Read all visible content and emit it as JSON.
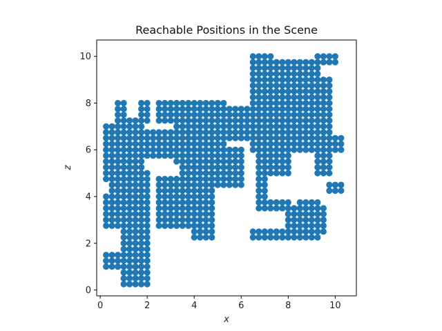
{
  "chart_data": {
    "type": "scatter",
    "title": "Reachable Positions in the Scene",
    "xlabel": "x",
    "ylabel": "z",
    "xlim": [
      -0.15,
      10.9
    ],
    "ylim": [
      -0.25,
      10.7
    ],
    "xticks": [
      "0",
      "2",
      "4",
      "6",
      "8",
      "10"
    ],
    "yticks": [
      "0",
      "2",
      "4",
      "6",
      "8",
      "10"
    ],
    "grid": false,
    "legend": "none",
    "point_color": "#1f77b4",
    "grid_step": 0.25,
    "point_count": 1059,
    "series": [
      {
        "regions": [
          {
            "x": [
              0.25,
              1.75
            ],
            "z": [
              4.75,
              7.0
            ]
          },
          {
            "x": [
              0.25,
              0.75
            ],
            "z": [
              2.75,
              4.0
            ]
          },
          {
            "x": [
              0.25,
              1.75
            ],
            "z": [
              1.0,
              1.5
            ]
          },
          {
            "x": [
              0.5,
              1.75
            ],
            "z": [
              3.0,
              6.0
            ]
          },
          {
            "x": [
              0.75,
              1.75
            ],
            "z": [
              5.5,
              7.25
            ]
          },
          {
            "x": [
              0.75,
              1.0
            ],
            "z": [
              7.25,
              8.0
            ]
          },
          {
            "x": [
              1.0,
              2.0
            ],
            "z": [
              0.25,
              5.0
            ]
          },
          {
            "x": [
              1.75,
              2.0
            ],
            "z": [
              7.25,
              8.0
            ]
          },
          {
            "x": [
              1.75,
              2.25
            ],
            "z": [
              5.75,
              6.75
            ]
          },
          {
            "x": [
              2.25,
              3.25
            ],
            "z": [
              6.25,
              6.75
            ]
          },
          {
            "x": [
              2.25,
              4.5
            ],
            "z": [
              5.75,
              6.25
            ]
          },
          {
            "x": [
              2.5,
              4.75
            ],
            "z": [
              2.75,
              4.75
            ]
          },
          {
            "x": [
              2.5,
              3.25
            ],
            "z": [
              7.25,
              8.0
            ]
          },
          {
            "x": [
              3.25,
              4.0
            ],
            "z": [
              7.5,
              8.0
            ]
          },
          {
            "x": [
              3.25,
              5.25
            ],
            "z": [
              5.5,
              7.5
            ]
          },
          {
            "x": [
              3.5,
              5.25
            ],
            "z": [
              4.75,
              6.0
            ]
          },
          {
            "x": [
              4.0,
              4.75
            ],
            "z": [
              2.25,
              3.25
            ]
          },
          {
            "x": [
              4.0,
              5.25
            ],
            "z": [
              7.5,
              8.0
            ]
          },
          {
            "x": [
              4.5,
              6.0
            ],
            "z": [
              4.5,
              6.0
            ]
          },
          {
            "x": [
              5.25,
              6.5
            ],
            "z": [
              6.5,
              7.75
            ]
          },
          {
            "x": [
              6.5,
              7.25
            ],
            "z": [
              8.0,
              10.0
            ]
          },
          {
            "x": [
              6.5,
              9.5
            ],
            "z": [
              6.0,
              9.0
            ]
          },
          {
            "x": [
              6.75,
              7.0
            ],
            "z": [
              3.5,
              6.0
            ]
          },
          {
            "x": [
              7.0,
              9.25
            ],
            "z": [
              9.0,
              9.75
            ]
          },
          {
            "x": [
              7.0,
              8.0
            ],
            "z": [
              5.0,
              6.0
            ]
          },
          {
            "x": [
              6.5,
              9.25
            ],
            "z": [
              2.25,
              2.5
            ]
          },
          {
            "x": [
              7.0,
              8.0
            ],
            "z": [
              3.5,
              3.75
            ]
          },
          {
            "x": [
              8.0,
              9.5
            ],
            "z": [
              2.5,
              3.5
            ]
          },
          {
            "x": [
              8.5,
              9.25
            ],
            "z": [
              3.5,
              3.75
            ]
          },
          {
            "x": [
              9.25,
              9.75
            ],
            "z": [
              5.0,
              9.0
            ]
          },
          {
            "x": [
              9.5,
              10.25
            ],
            "z": [
              6.0,
              6.5
            ]
          },
          {
            "x": [
              9.75,
              10.25
            ],
            "z": [
              4.25,
              4.5
            ]
          },
          {
            "x": [
              9.25,
              10.0
            ],
            "z": [
              9.75,
              10.0
            ]
          }
        ]
      }
    ]
  }
}
